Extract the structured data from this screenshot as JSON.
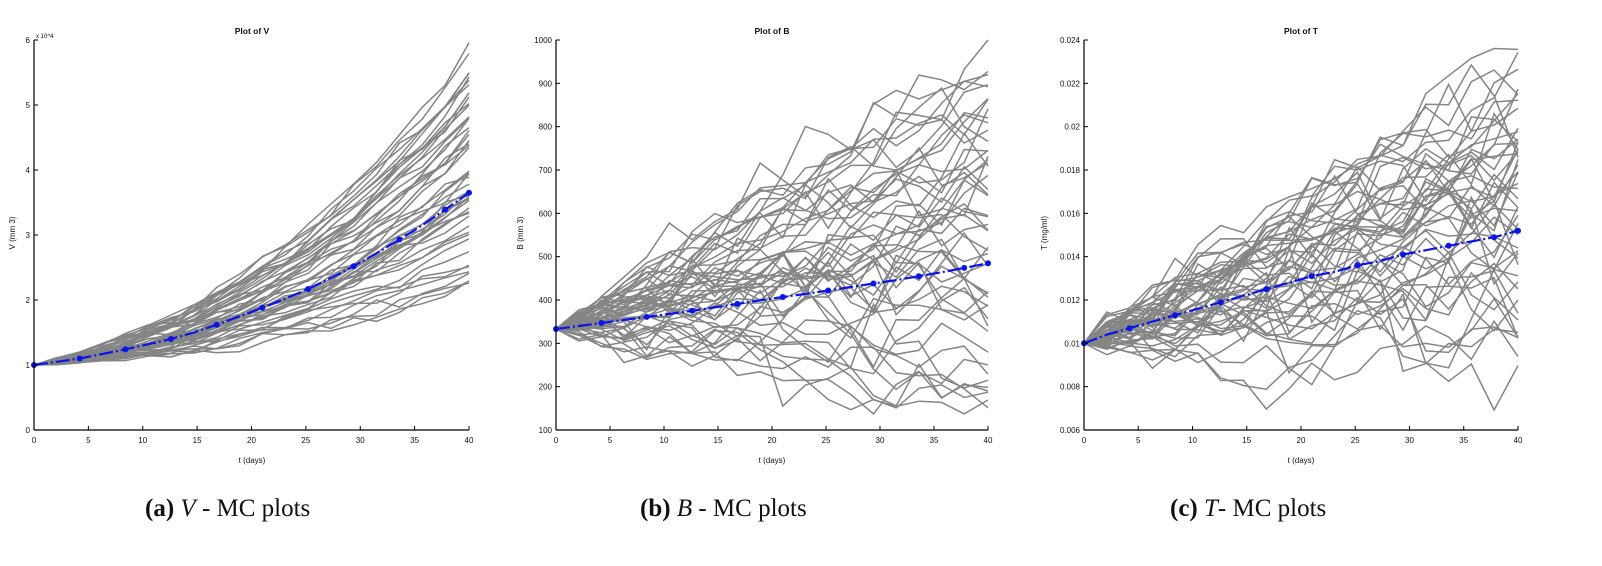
{
  "chart_data": [
    {
      "type": "line",
      "title": "Plot of V",
      "xlabel": "t (days)",
      "ylabel": "V (mm 3)",
      "y_scale_label": "x 10^4",
      "xlim": [
        0,
        40
      ],
      "ylim": [
        0,
        6
      ],
      "xticks": [
        "0",
        "5",
        "10",
        "15",
        "20",
        "25",
        "30",
        "35",
        "40"
      ],
      "yticks": [
        "0",
        "1",
        "2",
        "3",
        "4",
        "5",
        "6"
      ],
      "grid": false,
      "series": [
        {
          "x": [
            0,
            2.1,
            4.2,
            6.3,
            8.4,
            10.5,
            12.6,
            14.7,
            16.8,
            18.9,
            21,
            23.1,
            25.2,
            27.3,
            29.4,
            31.5,
            33.6,
            35.7,
            37.8,
            40
          ],
          "values": [
            1.0,
            1.05,
            1.1,
            1.17,
            1.24,
            1.32,
            1.4,
            1.5,
            1.62,
            1.75,
            1.88,
            2.02,
            2.17,
            2.34,
            2.52,
            2.72,
            2.93,
            3.15,
            3.39,
            3.65
          ]
        }
      ],
      "mc_runs": 50,
      "final_range": [
        2.2,
        5.8
      ]
    },
    {
      "type": "line",
      "title": "Plot of B",
      "xlabel": "t (days)",
      "ylabel": "B (mm 3)",
      "xlim": [
        0,
        40
      ],
      "ylim": [
        100,
        1000
      ],
      "xticks": [
        "0",
        "5",
        "10",
        "15",
        "20",
        "25",
        "30",
        "35",
        "40"
      ],
      "yticks": [
        "100",
        "200",
        "300",
        "400",
        "500",
        "600",
        "700",
        "800",
        "900",
        "1000"
      ],
      "grid": false,
      "series": [
        {
          "x": [
            0,
            2.1,
            4.2,
            6.3,
            8.4,
            10.5,
            12.6,
            14.7,
            16.8,
            18.9,
            21,
            23.1,
            25.2,
            27.3,
            29.4,
            31.5,
            33.6,
            35.7,
            37.8,
            40
          ],
          "values": [
            333,
            340,
            347,
            354,
            361,
            368,
            375,
            383,
            391,
            399,
            407,
            414,
            422,
            430,
            438,
            446,
            455,
            464,
            474,
            485
          ]
        }
      ],
      "mc_runs": 50,
      "final_range": [
        140,
        960
      ]
    },
    {
      "type": "line",
      "title": "Plot of T",
      "xlabel": "t (days)",
      "ylabel": "T (mg/ml)",
      "xlim": [
        0,
        40
      ],
      "ylim": [
        0.006,
        0.024
      ],
      "xticks": [
        "0",
        "5",
        "10",
        "15",
        "20",
        "25",
        "30",
        "35",
        "40"
      ],
      "yticks": [
        "0.006",
        "0.008",
        "0.01",
        "0.012",
        "0.014",
        "0.016",
        "0.018",
        "0.02",
        "0.022",
        "0.024"
      ],
      "grid": false,
      "series": [
        {
          "x": [
            0,
            2.1,
            4.2,
            6.3,
            8.4,
            10.5,
            12.6,
            14.7,
            16.8,
            18.9,
            21,
            23.1,
            25.2,
            27.3,
            29.4,
            31.5,
            33.6,
            35.7,
            37.8,
            40
          ],
          "values": [
            0.01,
            0.0104,
            0.0107,
            0.011,
            0.0113,
            0.0116,
            0.0119,
            0.0122,
            0.0125,
            0.0128,
            0.0131,
            0.0133,
            0.0136,
            0.0138,
            0.0141,
            0.0143,
            0.0145,
            0.0147,
            0.0149,
            0.0152
          ]
        }
      ],
      "mc_runs": 50,
      "final_range": [
        0.008,
        0.0235
      ]
    }
  ],
  "captions": [
    {
      "letter": "(a)",
      "var": "V",
      "text": " - MC plots"
    },
    {
      "letter": "(b)",
      "var": "B",
      "text": " - MC plots"
    },
    {
      "letter": "(c)",
      "var": "T",
      "text": "- MC plots"
    }
  ],
  "colors": {
    "simulation": "#858585",
    "mean": "#0a14e8"
  }
}
